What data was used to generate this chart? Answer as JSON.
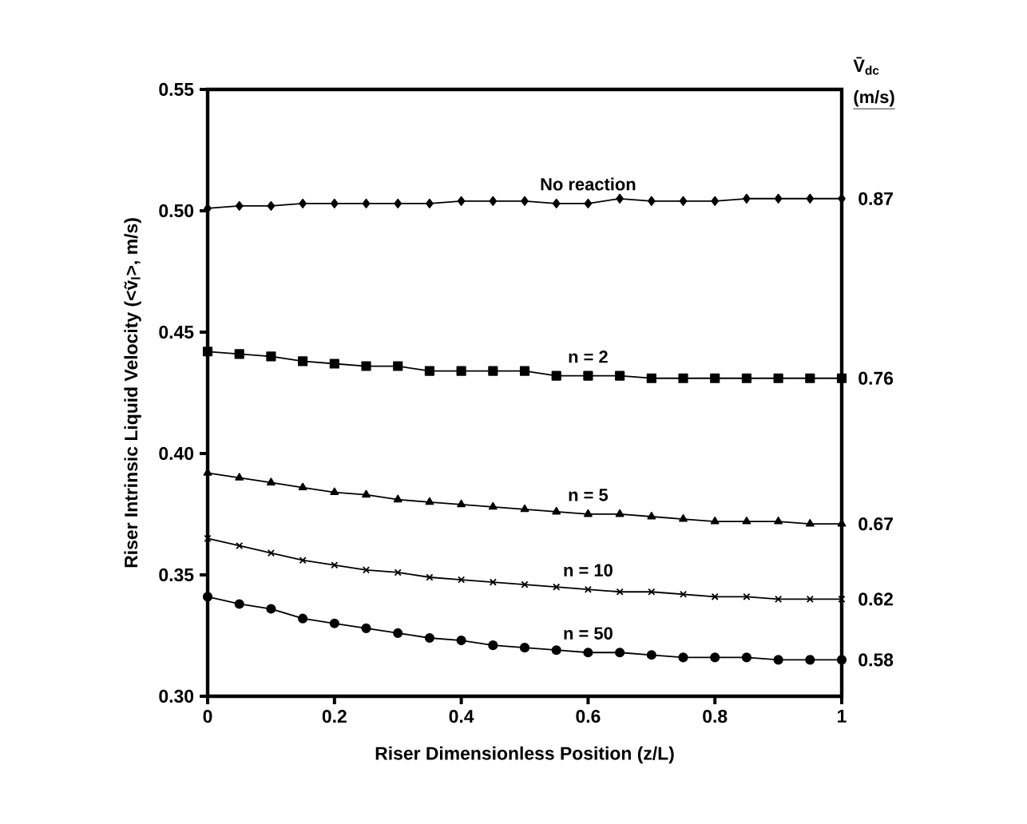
{
  "chart_data": {
    "type": "line",
    "xlabel": "Riser Dimensionless Position (z/L)",
    "ylabel": "Riser Intrinsic Liquid Velocity (<ṽ$_{l}$>, m/s)",
    "x": [
      0,
      0.05,
      0.1,
      0.15,
      0.2,
      0.25,
      0.3,
      0.35,
      0.4,
      0.45,
      0.5,
      0.55,
      0.6,
      0.65,
      0.7,
      0.75,
      0.8,
      0.85,
      0.9,
      0.95,
      1
    ],
    "xlim": [
      0,
      1
    ],
    "xticks": [
      0,
      0.2,
      0.4,
      0.6,
      0.8,
      1
    ],
    "ylim": [
      0.3,
      0.55
    ],
    "yticks": [
      {
        "value": 0.3,
        "label": "0.30"
      },
      {
        "value": 0.35,
        "label": "0.35"
      },
      {
        "value": 0.4,
        "label": "0.40"
      },
      {
        "value": 0.45,
        "label": "0.45"
      },
      {
        "value": 0.5,
        "label": "0.50"
      },
      {
        "value": 0.55,
        "label": "0.55"
      }
    ],
    "grid": false,
    "legend": false,
    "line_style": "solid",
    "series": [
      {
        "name": "No reaction",
        "color": "#000000",
        "marker": "diamond",
        "values": [
          0.501,
          0.502,
          0.502,
          0.503,
          0.503,
          0.503,
          0.503,
          0.503,
          0.504,
          0.504,
          0.504,
          0.503,
          0.503,
          0.505,
          0.504,
          0.504,
          0.504,
          0.505,
          0.505,
          0.505,
          0.505
        ]
      },
      {
        "name": "n = 2",
        "color": "#000000",
        "marker": "square",
        "values": [
          0.442,
          0.441,
          0.44,
          0.438,
          0.437,
          0.436,
          0.436,
          0.434,
          0.434,
          0.434,
          0.434,
          0.432,
          0.432,
          0.432,
          0.431,
          0.431,
          0.431,
          0.431,
          0.431,
          0.431,
          0.431
        ]
      },
      {
        "name": "n = 5",
        "color": "#000000",
        "marker": "triangle",
        "values": [
          0.392,
          0.39,
          0.388,
          0.386,
          0.384,
          0.383,
          0.381,
          0.38,
          0.379,
          0.378,
          0.377,
          0.376,
          0.375,
          0.375,
          0.374,
          0.373,
          0.372,
          0.372,
          0.372,
          0.371,
          0.371
        ]
      },
      {
        "name": "n = 10",
        "color": "#000000",
        "marker": "cross",
        "values": [
          0.365,
          0.362,
          0.359,
          0.356,
          0.354,
          0.352,
          0.351,
          0.349,
          0.348,
          0.347,
          0.346,
          0.345,
          0.344,
          0.343,
          0.343,
          0.342,
          0.341,
          0.341,
          0.34,
          0.34,
          0.34
        ]
      },
      {
        "name": "n = 50",
        "color": "#000000",
        "marker": "circle",
        "values": [
          0.341,
          0.338,
          0.336,
          0.332,
          0.33,
          0.328,
          0.326,
          0.324,
          0.323,
          0.321,
          0.32,
          0.319,
          0.318,
          0.318,
          0.317,
          0.316,
          0.316,
          0.316,
          0.315,
          0.315,
          0.315
        ]
      }
    ],
    "annotations": [
      "V̄$_{dc}$",
      "(m/s)",
      "0.87",
      "0.76",
      "0.67",
      "0.62",
      "0.58"
    ]
  }
}
